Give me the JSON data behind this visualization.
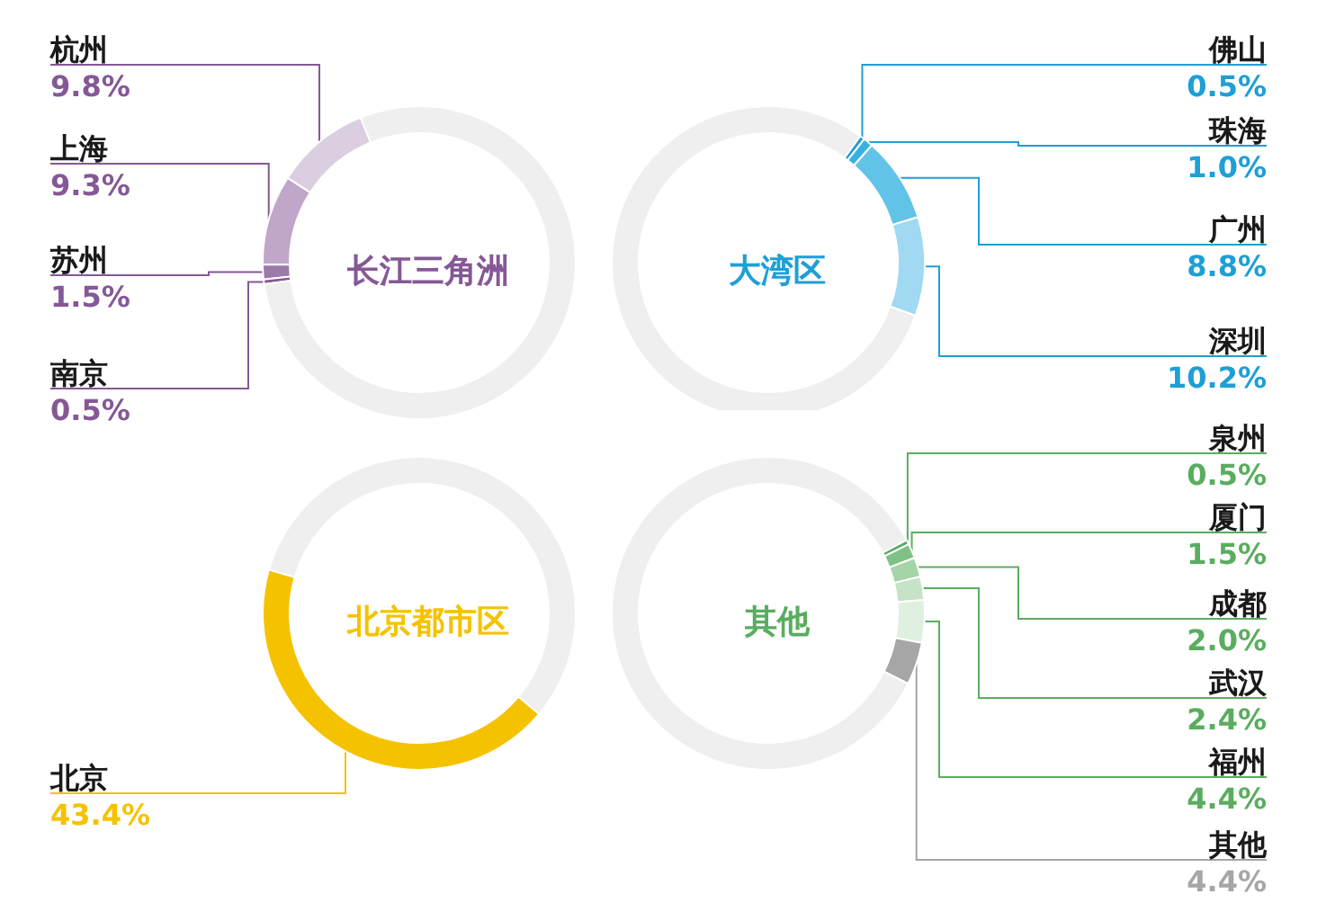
{
  "chart_data": [
    {
      "type": "donut",
      "title": "长江三角洲",
      "categories": [
        "杭州",
        "上海",
        "苏州",
        "南京",
        null
      ],
      "values": [
        9.8,
        9.3,
        1.5,
        0.5,
        78.9
      ],
      "colors": [
        "#dbcee0",
        "#c0a6c9",
        "#9c7aa9",
        "#855896",
        "#efefef"
      ],
      "value_labels": [
        "9.8%",
        "9.3%",
        "1.5%",
        "0.5%",
        null
      ]
    },
    {
      "type": "donut",
      "title": "大湾区",
      "categories": [
        "佛山",
        "珠海",
        "广州",
        "深圳",
        null
      ],
      "values": [
        0.5,
        1.0,
        8.8,
        10.2,
        79.5
      ],
      "colors": [
        "#1e9fd6",
        "#38b1e1",
        "#62c3e9",
        "#a0d9f1",
        "#efefef"
      ],
      "value_labels": [
        "0.5%",
        "1.0%",
        "8.8%",
        "10.2%",
        null
      ]
    },
    {
      "type": "donut",
      "title": "北京都市区",
      "categories": [
        "北京",
        null
      ],
      "values": [
        43.4,
        56.6
      ],
      "colors": [
        "#f5c200",
        "#efefef"
      ],
      "value_labels": [
        "43.4%",
        null
      ]
    },
    {
      "type": "donut",
      "title": "其他",
      "categories": [
        "泉州",
        "厦门",
        "成都",
        "武汉",
        "福州",
        "其他",
        null
      ],
      "values": [
        0.5,
        1.5,
        2.0,
        2.4,
        4.4,
        4.4,
        84.8
      ],
      "colors": [
        "#5aad5f",
        "#80c285",
        "#a4d4a7",
        "#c5e4c7",
        "#dff0e0",
        "#a6a6a6",
        "#efefef"
      ],
      "value_labels": [
        "0.5%",
        "1.5%",
        "2.0%",
        "2.4%",
        "4.4%",
        "4.4%",
        null
      ]
    }
  ]
}
